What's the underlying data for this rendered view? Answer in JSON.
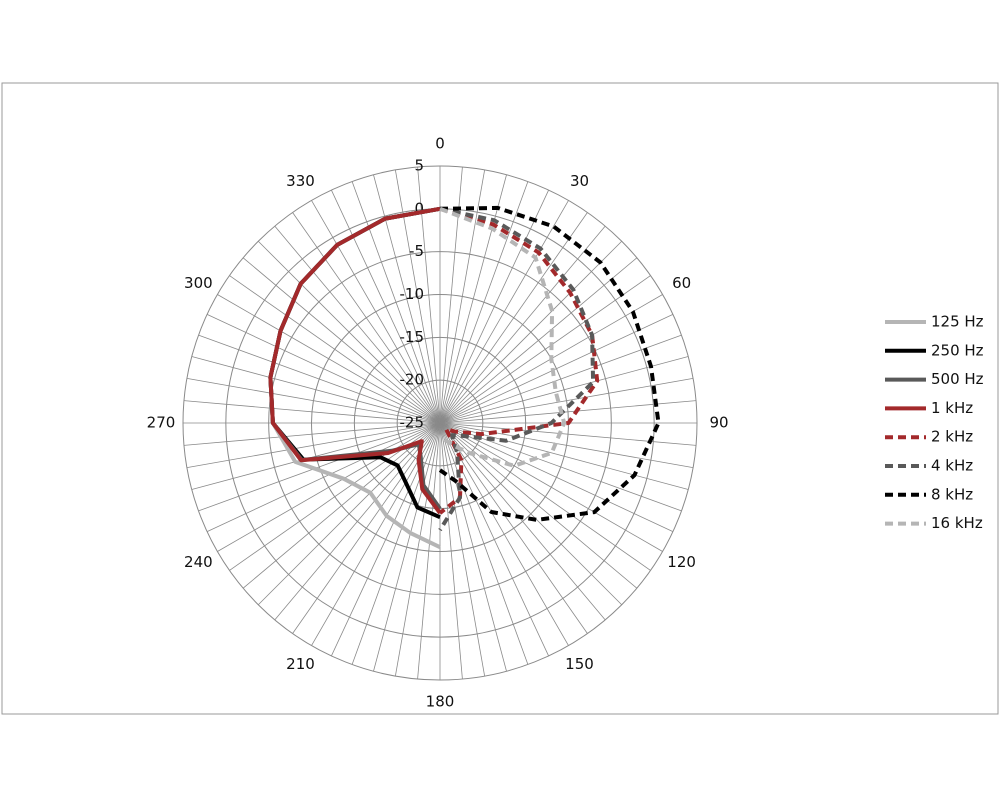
{
  "chart_data": {
    "type": "polar",
    "x": [
      0,
      15,
      30,
      45,
      60,
      75,
      90,
      105,
      120,
      135,
      150,
      165,
      180,
      195,
      210,
      225,
      240,
      255,
      270,
      285,
      300,
      315,
      330,
      345,
      360
    ],
    "rlim": [
      -25,
      5
    ],
    "rticks": [
      -25,
      -20,
      -15,
      -10,
      -5,
      0,
      5
    ],
    "thetaticks": [
      0,
      30,
      60,
      90,
      120,
      150,
      180,
      210,
      240,
      270,
      300,
      330
    ],
    "grid": true,
    "legend": "right",
    "series": [
      {
        "name": "125 Hz",
        "color": "#b5b5b5",
        "dashed": false,
        "values": [
          null,
          null,
          null,
          null,
          null,
          null,
          null,
          null,
          null,
          null,
          null,
          null,
          -10.5,
          -11.7,
          -12.5,
          -13.5,
          -12,
          -7.5,
          -5.5,
          -4.5,
          -3.5,
          -2,
          -1,
          -0.3,
          0
        ]
      },
      {
        "name": "250 Hz",
        "color": "#000000",
        "dashed": false,
        "values": [
          null,
          null,
          null,
          null,
          null,
          null,
          null,
          null,
          null,
          null,
          null,
          null,
          -14,
          -14.8,
          -17,
          -18,
          -17,
          -8.5,
          -5.5,
          -4.5,
          -3.5,
          -2,
          -1,
          -0.3,
          0
        ]
      },
      {
        "name": "500 Hz",
        "color": "#595959",
        "dashed": false,
        "values": [
          null,
          null,
          null,
          null,
          null,
          null,
          null,
          null,
          null,
          null,
          null,
          null,
          -15,
          -17.5,
          -20.5,
          -21.5,
          -18.5,
          -8.3,
          -5.5,
          -4.5,
          -3.5,
          -2,
          -1,
          -0.3,
          0
        ]
      },
      {
        "name": "1 kHz",
        "color": "#a3292b",
        "dashed": false,
        "values": [
          null,
          null,
          null,
          null,
          null,
          null,
          null,
          null,
          null,
          null,
          null,
          null,
          -14.5,
          -17,
          -20,
          -22,
          -18,
          -8.2,
          -5.5,
          -4.5,
          -3.5,
          -2,
          -1,
          -0.3,
          0
        ]
      },
      {
        "name": "2 kHz",
        "color": "#a3292b",
        "dashed": true,
        "values": [
          0,
          -1,
          -2,
          -3.5,
          -4.5,
          -6,
          -10,
          -20,
          -23,
          -24,
          -20,
          -16,
          -14.5,
          null,
          null,
          null,
          null,
          null,
          null,
          null,
          null,
          null,
          null,
          null,
          null
        ]
      },
      {
        "name": "4 kHz",
        "color": "#595959",
        "dashed": true,
        "values": [
          0,
          -0.5,
          -1.5,
          -3,
          -4.5,
          -6.5,
          -12,
          -17,
          -22,
          -23,
          -21,
          -16,
          -12.5,
          null,
          null,
          null,
          null,
          null,
          null,
          null,
          null,
          null,
          null,
          null,
          null
        ]
      },
      {
        "name": "8 kHz",
        "color": "#000000",
        "dashed": true,
        "values": [
          0,
          1,
          1.5,
          1.5,
          1,
          0.5,
          0.5,
          -1.5,
          -4.2,
          -9,
          -13,
          -18,
          -19.5,
          null,
          null,
          null,
          null,
          null,
          null,
          null,
          null,
          null,
          null,
          null,
          null
        ]
      },
      {
        "name": "16 kHz",
        "color": "#b5b5b5",
        "dashed": true,
        "values": [
          0,
          -1.5,
          -2.7,
          -6.5,
          -10,
          -11,
          -10.5,
          -11.5,
          -15,
          -20,
          -22,
          -23,
          -23,
          null,
          null,
          null,
          null,
          null,
          null,
          null,
          null,
          null,
          null,
          null,
          null
        ]
      }
    ]
  }
}
